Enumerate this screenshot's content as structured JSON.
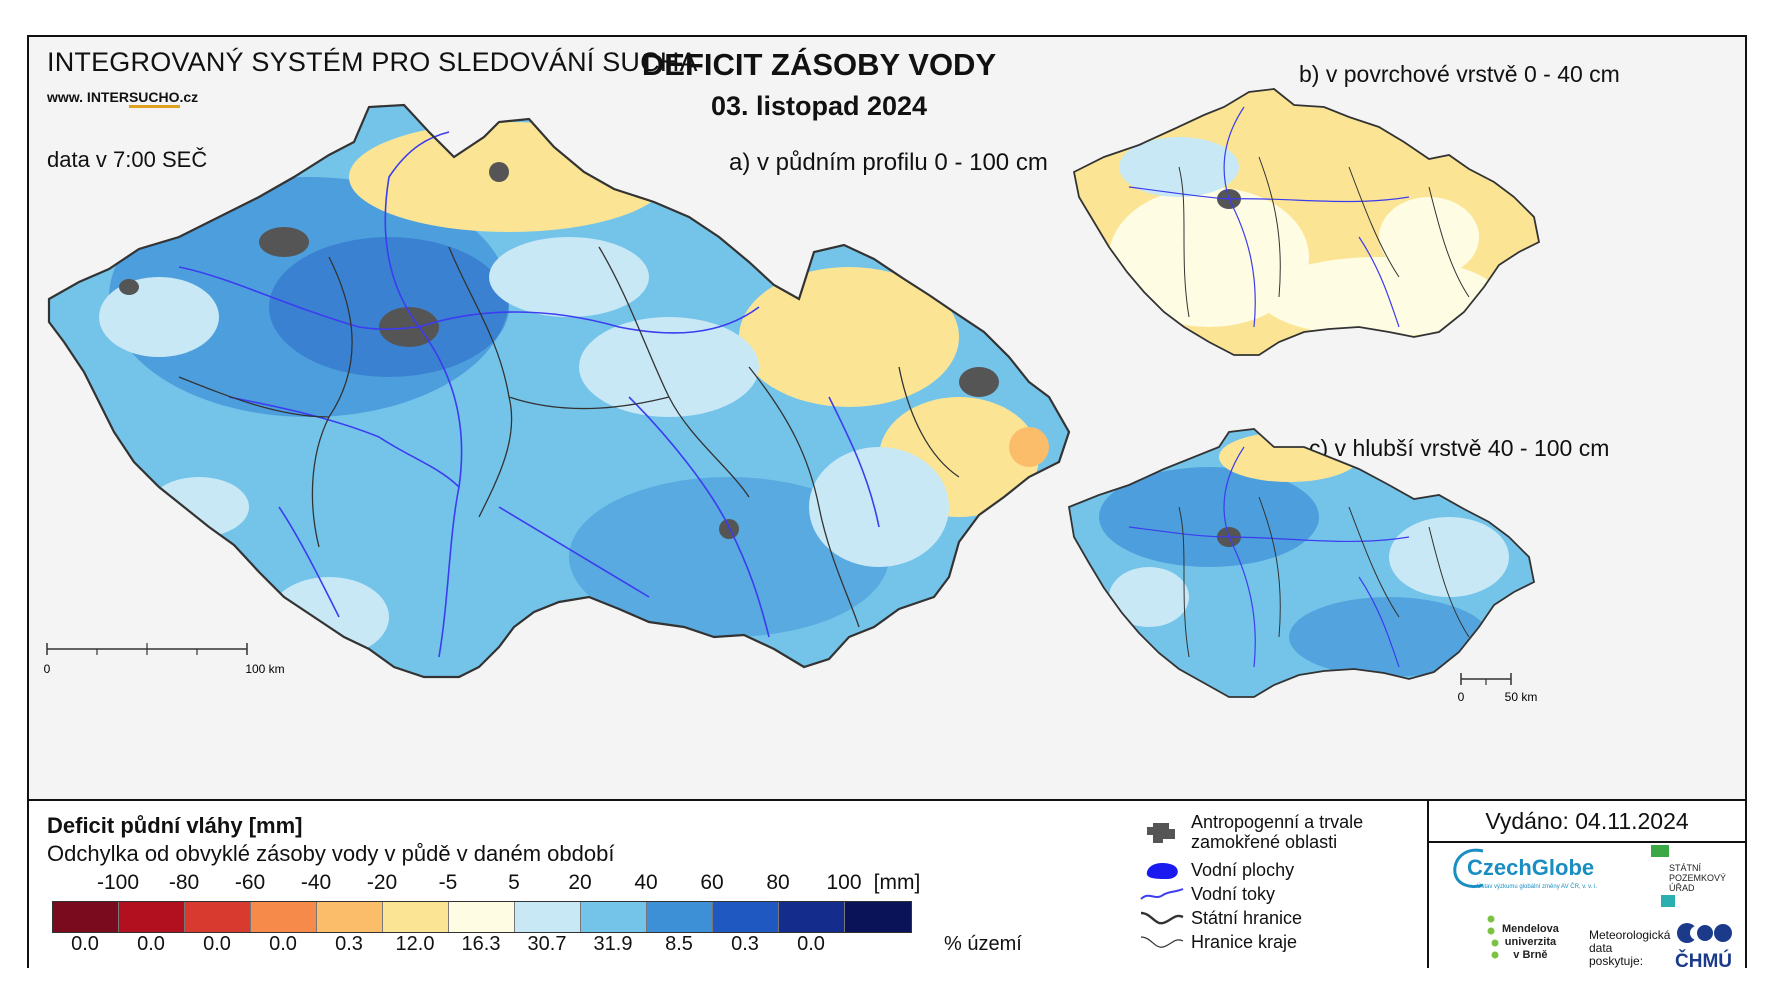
{
  "header": {
    "system_title": "INTEGROVANÝ SYSTÉM PRO SLEDOVÁNÍ SUCHA",
    "website_prefix": "www. INTER",
    "website_sucho": "SUCHO",
    "website_suffix": ".cz",
    "data_time": "data v 7:00 SEČ",
    "main_title": "DEFICIT ZÁSOBY VODY",
    "date": "03. listopad 2024"
  },
  "panels": {
    "a_title": "a) v půdním profilu 0 - 100 cm",
    "b_title": "b) v povrchové vrstvě 0 - 40 cm",
    "c_title": "c) v hlubší vrstvě 40 - 100 cm",
    "scale_a": {
      "start": "0",
      "end": "100 km"
    },
    "scale_c": {
      "start": "0",
      "end": "50 km"
    }
  },
  "legend": {
    "title": "Deficit půdní vláhy  [mm]",
    "subtitle": "Odchylka od obvyklé zásoby vody v půdě v daném období",
    "breaks": [
      "-100",
      "-80",
      "-60",
      "-40",
      "-20",
      "-5",
      "5",
      "20",
      "40",
      "60",
      "80",
      "100"
    ],
    "unit": "[mm]",
    "colors": [
      "#7a0a1e",
      "#b3101f",
      "#d93a2f",
      "#f58a4a",
      "#fbbd6a",
      "#fbe595",
      "#fefde4",
      "#c8e8f6",
      "#74c4ea",
      "#3d8fd6",
      "#1f58c1",
      "#142c8c",
      "#0a1358"
    ],
    "percentages": [
      "0.0",
      "0.0",
      "0.0",
      "0.0",
      "0.3",
      "12.0",
      "16.3",
      "30.7",
      "31.9",
      "8.5",
      "0.3",
      "0.0"
    ],
    "percent_unit": "% území"
  },
  "symbols": {
    "anthropogenic": "Antropogenní a trvale\nzamokřené oblasti",
    "water_bodies": "Vodní plochy",
    "water_courses": "Vodní toky",
    "state_border": "Státní hranice",
    "region_border": "Hranice kraje"
  },
  "issued": "Vydáno: 04.11.2024",
  "logos": {
    "czechglobe": "CzechGlobe",
    "czechglobe_sub": "Ústav výzkumu globální změny AV ČR, v. v. i.",
    "spu": "STÁTNÍ\nPOZEMKOVÝ\nÚŘAD",
    "mendel": "Mendelova\nuniverzita\nv Brně",
    "met_data": "Meteorologická\ndata\nposkytuje:",
    "chmu": "ČHMÚ"
  },
  "map_colors": {
    "state_border": "#333333",
    "region_border": "#333333",
    "rivers": "#3c3cf0",
    "urban": "#555555"
  }
}
